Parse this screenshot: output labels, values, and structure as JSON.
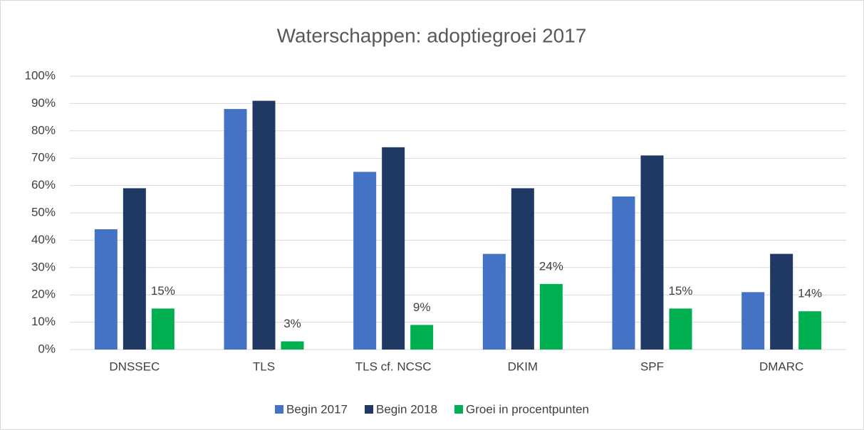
{
  "chart_data": {
    "type": "bar",
    "title": "Waterschappen: adoptiegroei 2017",
    "categories": [
      "DNSSEC",
      "TLS",
      "TLS cf. NCSC",
      "DKIM",
      "SPF",
      "DMARC"
    ],
    "series": [
      {
        "name": "Begin 2017",
        "color": "#4472c4",
        "values": [
          44,
          88,
          65,
          35,
          56,
          21
        ]
      },
      {
        "name": "Begin 2018",
        "color": "#1f3864",
        "values": [
          59,
          91,
          74,
          59,
          71,
          35
        ]
      },
      {
        "name": "Groei in procentpunten",
        "color": "#00b050",
        "values": [
          15,
          3,
          9,
          24,
          15,
          14
        ],
        "value_labels": [
          "15%",
          "3%",
          "9%",
          "24%",
          "15%",
          "14%"
        ]
      }
    ],
    "ylim": [
      0,
      100
    ],
    "yticks": [
      {
        "value": 0,
        "label": "0%"
      },
      {
        "value": 10,
        "label": "10%"
      },
      {
        "value": 20,
        "label": "20%"
      },
      {
        "value": 30,
        "label": "30%"
      },
      {
        "value": 40,
        "label": "40%"
      },
      {
        "value": 50,
        "label": "50%"
      },
      {
        "value": 60,
        "label": "60%"
      },
      {
        "value": 70,
        "label": "70%"
      },
      {
        "value": 80,
        "label": "80%"
      },
      {
        "value": 90,
        "label": "90%"
      },
      {
        "value": 100,
        "label": "100%"
      }
    ],
    "grid": true,
    "legend": "bottom"
  }
}
